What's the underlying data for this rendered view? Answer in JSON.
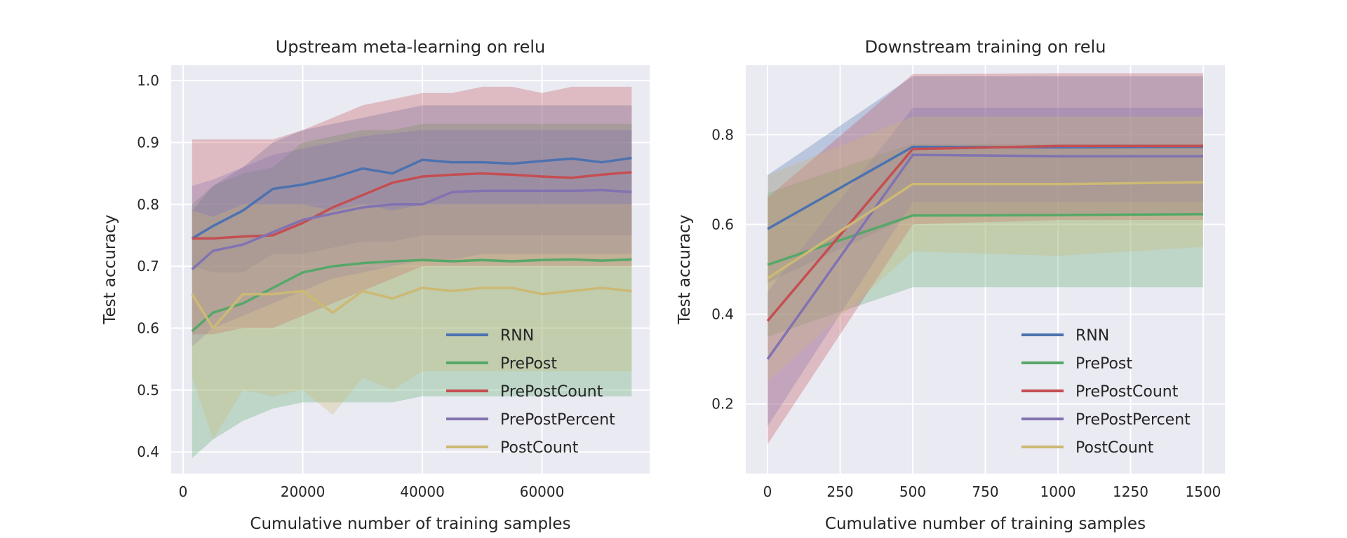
{
  "colors": {
    "background": "#eaeaf2",
    "grid": "#ffffff",
    "RNN": "#4c72b0",
    "PrePost": "#55a868",
    "PrePostCount": "#c44e52",
    "PrePostPercent": "#8172b2",
    "PostCount": "#ccb974"
  },
  "chart_data": [
    {
      "type": "line",
      "title": "Upstream meta-learning on relu",
      "xlabel": "Cumulative number of training samples",
      "ylabel": "Test accuracy",
      "xlim": [
        -2000,
        78000
      ],
      "ylim": [
        0.365,
        1.025
      ],
      "xticks": [
        0,
        20000,
        40000,
        60000
      ],
      "xtick_labels": [
        "0",
        "20000",
        "40000",
        "60000"
      ],
      "yticks": [
        0.4,
        0.5,
        0.6,
        0.7,
        0.8,
        0.9,
        1.0
      ],
      "ytick_labels": [
        "0.4",
        "0.5",
        "0.6",
        "0.7",
        "0.8",
        "0.9",
        "1.0"
      ],
      "grid": true,
      "legend_position": "lower-right",
      "x": [
        1500,
        5000,
        10000,
        15000,
        20000,
        25000,
        30000,
        35000,
        40000,
        45000,
        50000,
        55000,
        60000,
        65000,
        70000,
        75000
      ],
      "series": [
        {
          "name": "RNN",
          "values": [
            0.745,
            0.765,
            0.79,
            0.825,
            0.832,
            0.843,
            0.858,
            0.85,
            0.872,
            0.868,
            0.868,
            0.866,
            0.87,
            0.874,
            0.868,
            0.875
          ],
          "lower": [
            0.7,
            0.69,
            0.69,
            0.72,
            0.72,
            0.73,
            0.74,
            0.74,
            0.75,
            0.75,
            0.75,
            0.75,
            0.75,
            0.75,
            0.75,
            0.75
          ],
          "upper": [
            0.79,
            0.83,
            0.86,
            0.9,
            0.92,
            0.93,
            0.94,
            0.95,
            0.96,
            0.96,
            0.96,
            0.96,
            0.96,
            0.96,
            0.96,
            0.96
          ]
        },
        {
          "name": "PrePost",
          "values": [
            0.595,
            0.625,
            0.64,
            0.665,
            0.69,
            0.7,
            0.705,
            0.708,
            0.71,
            0.708,
            0.71,
            0.708,
            0.71,
            0.711,
            0.709,
            0.711
          ],
          "lower": [
            0.39,
            0.42,
            0.45,
            0.47,
            0.48,
            0.48,
            0.48,
            0.48,
            0.49,
            0.49,
            0.49,
            0.49,
            0.49,
            0.49,
            0.49,
            0.49
          ],
          "upper": [
            0.8,
            0.83,
            0.85,
            0.86,
            0.9,
            0.91,
            0.92,
            0.92,
            0.93,
            0.93,
            0.93,
            0.93,
            0.93,
            0.93,
            0.93,
            0.93
          ]
        },
        {
          "name": "PrePostCount",
          "values": [
            0.745,
            0.745,
            0.748,
            0.75,
            0.77,
            0.795,
            0.815,
            0.835,
            0.845,
            0.848,
            0.85,
            0.848,
            0.845,
            0.843,
            0.848,
            0.852
          ],
          "lower": [
            0.59,
            0.59,
            0.6,
            0.6,
            0.62,
            0.64,
            0.66,
            0.68,
            0.7,
            0.7,
            0.7,
            0.7,
            0.7,
            0.7,
            0.7,
            0.7
          ],
          "upper": [
            0.905,
            0.905,
            0.905,
            0.905,
            0.92,
            0.94,
            0.96,
            0.97,
            0.98,
            0.98,
            0.99,
            0.99,
            0.98,
            0.99,
            0.99,
            0.99
          ]
        },
        {
          "name": "PrePostPercent",
          "values": [
            0.695,
            0.725,
            0.735,
            0.755,
            0.775,
            0.785,
            0.795,
            0.8,
            0.8,
            0.82,
            0.822,
            0.822,
            0.822,
            0.822,
            0.823,
            0.82
          ],
          "lower": [
            0.57,
            0.6,
            0.62,
            0.64,
            0.66,
            0.68,
            0.69,
            0.7,
            0.71,
            0.71,
            0.72,
            0.72,
            0.72,
            0.72,
            0.72,
            0.72
          ],
          "upper": [
            0.83,
            0.84,
            0.86,
            0.88,
            0.89,
            0.9,
            0.91,
            0.915,
            0.92,
            0.92,
            0.92,
            0.92,
            0.92,
            0.92,
            0.92,
            0.92
          ]
        },
        {
          "name": "PostCount",
          "values": [
            0.655,
            0.6,
            0.655,
            0.655,
            0.66,
            0.625,
            0.66,
            0.648,
            0.665,
            0.66,
            0.665,
            0.665,
            0.655,
            0.66,
            0.665,
            0.66
          ],
          "lower": [
            0.52,
            0.42,
            0.5,
            0.49,
            0.5,
            0.46,
            0.52,
            0.5,
            0.53,
            0.53,
            0.53,
            0.53,
            0.53,
            0.53,
            0.53,
            0.53
          ],
          "upper": [
            0.79,
            0.78,
            0.8,
            0.8,
            0.8,
            0.79,
            0.8,
            0.79,
            0.8,
            0.8,
            0.8,
            0.8,
            0.8,
            0.8,
            0.8,
            0.8
          ]
        }
      ]
    },
    {
      "type": "line",
      "title": "Downstream training on relu",
      "xlabel": "Cumulative number of training samples",
      "ylabel": "Test accuracy",
      "xlim": [
        -75,
        1575
      ],
      "ylim": [
        0.045,
        0.955
      ],
      "xticks": [
        0,
        250,
        500,
        750,
        1000,
        1250,
        1500
      ],
      "xtick_labels": [
        "0",
        "250",
        "500",
        "750",
        "1000",
        "1250",
        "1500"
      ],
      "yticks": [
        0.2,
        0.4,
        0.6,
        0.8
      ],
      "ytick_labels": [
        "0.2",
        "0.4",
        "0.6",
        "0.8"
      ],
      "grid": true,
      "legend_position": "lower-right",
      "x": [
        0,
        500,
        1000,
        1500
      ],
      "series": [
        {
          "name": "RNN",
          "values": [
            0.59,
            0.773,
            0.772,
            0.773
          ],
          "lower": [
            0.47,
            0.62,
            0.62,
            0.62
          ],
          "upper": [
            0.71,
            0.93,
            0.93,
            0.93
          ]
        },
        {
          "name": "PrePost",
          "values": [
            0.51,
            0.62,
            0.621,
            0.623
          ],
          "lower": [
            0.35,
            0.46,
            0.46,
            0.46
          ],
          "upper": [
            0.67,
            0.78,
            0.78,
            0.78
          ]
        },
        {
          "name": "PrePostCount",
          "values": [
            0.385,
            0.768,
            0.775,
            0.775
          ],
          "lower": [
            0.11,
            0.6,
            0.61,
            0.61
          ],
          "upper": [
            0.66,
            0.935,
            0.937,
            0.937
          ]
        },
        {
          "name": "PrePostPercent",
          "values": [
            0.3,
            0.755,
            0.752,
            0.752
          ],
          "lower": [
            0.15,
            0.65,
            0.65,
            0.65
          ],
          "upper": [
            0.45,
            0.86,
            0.86,
            0.86
          ]
        },
        {
          "name": "PostCount",
          "values": [
            0.48,
            0.69,
            0.69,
            0.694
          ],
          "lower": [
            0.25,
            0.54,
            0.53,
            0.55
          ],
          "upper": [
            0.71,
            0.84,
            0.84,
            0.84
          ]
        }
      ]
    }
  ]
}
